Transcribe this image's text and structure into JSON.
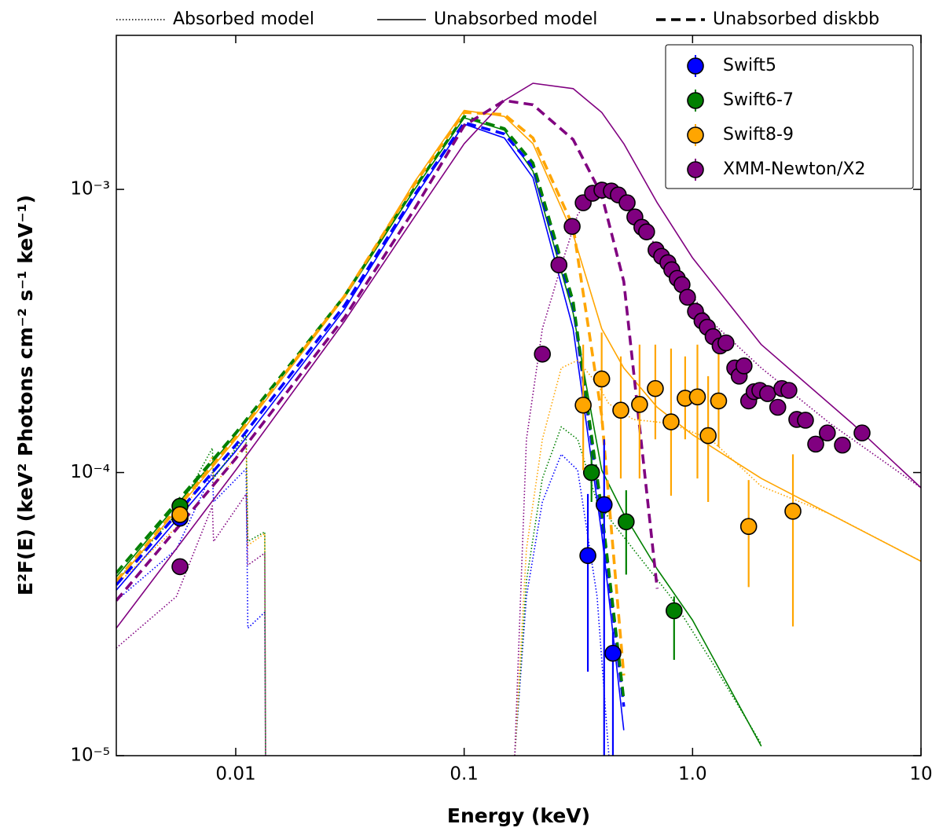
{
  "chart_data": {
    "type": "scatter",
    "xlabel": "Energy (keV)",
    "ylabel": "E²F(E) (keV² Photons cm⁻² s⁻¹ keV⁻¹)",
    "xscale": "log",
    "yscale": "log",
    "xlim": [
      0.003,
      10
    ],
    "ylim": [
      1e-05,
      0.0035
    ],
    "xticks": [
      0.01,
      0.1,
      {
        "value": 1,
        "label": "1.0"
      },
      10
    ],
    "yticks": [
      {
        "value": 1e-05,
        "label": "10⁻⁵"
      },
      {
        "value": 0.0001,
        "label": "10⁻⁴"
      },
      {
        "value": 0.001,
        "label": "10⁻³"
      }
    ],
    "legend": "upper right",
    "style_legend": [
      {
        "label": "Absorbed model",
        "linestyle": "dotted"
      },
      {
        "label": "Unabsorbed model",
        "linestyle": "solid"
      },
      {
        "label": "Unabsorbed diskbb",
        "linestyle": "dashed"
      }
    ],
    "model_energy": [
      0.003,
      0.01,
      0.03,
      0.06,
      0.1,
      0.15,
      0.2,
      0.3,
      0.4,
      0.5,
      0.7,
      1,
      2,
      5,
      10
    ],
    "absorbed_energy": [
      0.003,
      0.0055,
      0.0079,
      0.008,
      0.0111,
      0.0113,
      0.0134,
      0.0135,
      0.05,
      0.1665,
      0.1874,
      0.22,
      0.266,
      0.314,
      0.382,
      0.43,
      0.55,
      0.8,
      1.2,
      2,
      4,
      10
    ],
    "series": [
      {
        "name": "Swift5",
        "color": "#0000ff",
        "x": [
          0.0057,
          0.348,
          0.41,
          0.448
        ],
        "y": [
          6.9e-05,
          5.09e-05,
          7.7e-05,
          2.3e-05
        ],
        "ylow": [
          6.5e-05,
          1.98e-05,
          1e-05,
          1e-05
        ],
        "yhigh": [
          7.4e-05,
          8.4e-05,
          0.000131,
          2.73e-05
        ],
        "unabsorbed": [
          3.84e-05,
          0.000119,
          0.000378,
          0.000926,
          0.0017,
          0.00152,
          0.0011,
          0.000322,
          6.09e-05,
          1.23e-05,
          null,
          null,
          null,
          null,
          null
        ],
        "diskbb": [
          4.01e-05,
          0.000125,
          0.00039,
          0.000944,
          0.00172,
          0.00157,
          0.0012,
          0.00039,
          6.92e-05,
          1.49e-05,
          null,
          null,
          null,
          null,
          null
        ],
        "absorbed": [
          3.53e-05,
          5.36e-05,
          0.0001,
          7.87e-05,
          0.000103,
          2.82e-05,
          3.21e-05,
          1e-05,
          null,
          1e-05,
          3.65e-05,
          7.87e-05,
          0.000116,
          0.000102,
          3.65e-05,
          1e-05,
          null,
          null,
          null,
          null,
          null,
          null
        ]
      },
      {
        "name": "Swift6-7",
        "color": "#008000",
        "x": [
          0.0057,
          0.361,
          0.512,
          0.83
        ],
        "y": [
          7.6e-05,
          0.0001,
          6.7e-05,
          3.25e-05
        ],
        "ylow": [
          7.2e-05,
          7.87e-05,
          4.36e-05,
          2.18e-05
        ],
        "yhigh": [
          8e-05,
          0.000119,
          8.66e-05,
          3.65e-05
        ],
        "unabsorbed": [
          4.28e-05,
          0.000136,
          0.000416,
          0.000987,
          0.00179,
          0.00162,
          0.00116,
          0.000366,
          0.000102,
          7.14e-05,
          4.56e-05,
          3.01e-05,
          1.08e-05,
          null,
          null
        ],
        "diskbb": [
          4.42e-05,
          0.000138,
          0.000421,
          0.001,
          0.00181,
          0.00164,
          0.00124,
          0.000403,
          7.38e-05,
          1.58e-05,
          null,
          null,
          null,
          null,
          null
        ],
        "absorbed": [
          4.14e-05,
          7.14e-05,
          0.000122,
          9.53e-05,
          0.000136,
          5.71e-05,
          6.17e-05,
          1e-05,
          null,
          1e-05,
          4.14e-05,
          9.53e-05,
          0.000145,
          0.000131,
          7.87e-05,
          6.92e-05,
          5.36e-05,
          3.65e-05,
          2.18e-05,
          1.1e-05,
          null,
          null
        ]
      },
      {
        "name": "Swift8-9",
        "color": "#ffa500",
        "x": [
          0.0057,
          0.332,
          0.4,
          0.485,
          0.586,
          0.687,
          0.805,
          0.928,
          1.05,
          1.17,
          1.3,
          1.76,
          2.75
        ],
        "y": [
          7.1e-05,
          0.000173,
          0.000214,
          0.000166,
          0.000174,
          0.000198,
          0.000151,
          0.000183,
          0.000185,
          0.000135,
          0.000179,
          6.45e-05,
          7.3e-05
        ],
        "ylow": [
          6.7e-05,
          0.000102,
          0.000149,
          9.53e-05,
          9.53e-05,
          0.000131,
          8.28e-05,
          0.000131,
          9.53e-05,
          7.87e-05,
          0.000123,
          3.94e-05,
          2.86e-05
        ],
        "yhigh": [
          7.5e-05,
          0.000283,
          0.000312,
          0.000257,
          0.000283,
          0.000283,
          0.000274,
          0.000257,
          0.000283,
          0.000219,
          0.000283,
          9.41e-05,
          0.000116
        ],
        "unabsorbed": [
          4.09e-05,
          0.000131,
          0.000416,
          0.00105,
          0.0019,
          0.00181,
          0.00145,
          0.000694,
          0.000322,
          0.000234,
          0.00017,
          0.000136,
          9.53e-05,
          6.49e-05,
          4.86e-05
        ],
        "diskbb": [
          4.14e-05,
          0.000133,
          0.000421,
          0.00103,
          0.00187,
          0.00184,
          0.00152,
          0.00074,
          0.000159,
          1.92e-05,
          null,
          null,
          null,
          null,
          null
        ],
        "absorbed": [
          4.01e-05,
          6.41e-05,
          0.000114,
          8.94e-05,
          0.000127,
          5.53e-05,
          6.09e-05,
          1e-05,
          null,
          1e-05,
          5.36e-05,
          0.000131,
          0.000234,
          0.000249,
          0.000206,
          0.000175,
          0.000154,
          0.000149,
          0.000131,
          8.94e-05,
          7.14e-05,
          4.86e-05
        ]
      },
      {
        "name": "XMM-Newton/X2",
        "color": "#800080",
        "x": [
          0.0057,
          0.22,
          0.26,
          0.297,
          0.332,
          0.365,
          0.401,
          0.441,
          0.473,
          0.517,
          0.559,
          0.6,
          0.629,
          0.692,
          0.732,
          0.78,
          0.811,
          0.857,
          0.899,
          0.95,
          1.03,
          1.1,
          1.16,
          1.23,
          1.32,
          1.4,
          1.53,
          1.6,
          1.68,
          1.76,
          1.86,
          1.97,
          2.13,
          2.36,
          2.46,
          2.64,
          2.86,
          3.12,
          3.46,
          3.89,
          4.53,
          5.52
        ],
        "y": [
          4.65e-05,
          0.000262,
          0.000541,
          0.00074,
          0.000897,
          0.000969,
          0.000994,
          0.000987,
          0.000956,
          0.000897,
          0.000799,
          0.000735,
          0.000708,
          0.000611,
          0.00058,
          0.000551,
          0.00052,
          0.000485,
          0.000461,
          0.000416,
          0.000371,
          0.000343,
          0.000326,
          0.000302,
          0.00028,
          0.000287,
          0.000234,
          0.000219,
          0.000238,
          0.000179,
          0.000193,
          0.000195,
          0.00019,
          0.00017,
          0.000198,
          0.000195,
          0.000154,
          0.000153,
          0.000126,
          0.000138,
          0.000125,
          0.000138
        ],
        "unabsorbed": [
          2.82e-05,
          0.000102,
          0.000343,
          0.000789,
          0.00145,
          0.00206,
          0.00237,
          0.00227,
          0.00187,
          0.00145,
          0.000897,
          0.000573,
          0.000283,
          0.000149,
          8.83e-05
        ],
        "diskbb": [
          3.53e-05,
          0.000112,
          0.000354,
          0.000841,
          0.00168,
          0.00206,
          0.00199,
          0.0015,
          0.000956,
          0.000473,
          3.89e-05,
          null,
          null,
          null,
          null
        ],
        "absorbed": [
          2.4e-05,
          3.65e-05,
          7.62e-05,
          5.71e-05,
          8.39e-05,
          4.71e-05,
          5.19e-05,
          1e-05,
          null,
          1e-05,
          0.000131,
          0.000322,
          0.000538,
          0.000815,
          0.000987,
          0.000987,
          0.000815,
          0.000538,
          0.000343,
          0.000234,
          0.000149,
          8.83e-05
        ]
      }
    ]
  }
}
